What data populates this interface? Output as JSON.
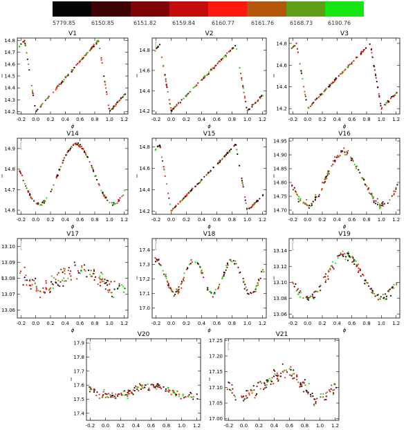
{
  "colorbar": {
    "colors": [
      "#050505",
      "#3e0204",
      "#800406",
      "#c40d0d",
      "#ff1a0d",
      "#b4560c",
      "#5f9e19",
      "#16e514"
    ],
    "epochs": [
      "5779.85",
      "6150.85",
      "6151.82",
      "6159.84",
      "6160.77",
      "6161.76",
      "6168.73",
      "6190.76"
    ]
  },
  "chart_data": [
    {
      "type": "scatter",
      "title": "V1",
      "xlabel": "ϕ",
      "ylabel": "I",
      "xlim": [
        -0.25,
        1.25
      ],
      "ylim": [
        14.82,
        14.18
      ],
      "xticks": [
        "-0.2",
        "0.0",
        "0.2",
        "0.4",
        "0.6",
        "0.8",
        "1.0",
        "1.2"
      ],
      "yticks": [
        "14.2",
        "14.3",
        "14.4",
        "14.5",
        "14.6",
        "14.7",
        "14.8"
      ],
      "curve": {
        "shape": "saw",
        "x": [
          0.0,
          0.85
        ],
        "y": [
          14.2,
          14.8
        ],
        "scatter": 0.012
      },
      "error_bar": false
    },
    {
      "type": "scatter",
      "title": "V2",
      "xlabel": "ϕ",
      "ylabel": "I",
      "xlim": [
        -0.25,
        1.25
      ],
      "ylim": [
        14.92,
        14.17
      ],
      "xticks": [
        "-0.2",
        "0.0",
        "0.2",
        "0.4",
        "0.6",
        "0.8",
        "1.0",
        "1.2"
      ],
      "yticks": [
        "14.2",
        "14.4",
        "14.6",
        "14.8"
      ],
      "curve": {
        "shape": "saw",
        "x": [
          0.0,
          0.85
        ],
        "y": [
          14.2,
          14.85
        ],
        "scatter": 0.015
      },
      "error_bar": true
    },
    {
      "type": "scatter",
      "title": "V3",
      "xlabel": "ϕ",
      "ylabel": "I",
      "xlim": [
        -0.25,
        1.25
      ],
      "ylim": [
        14.85,
        14.15
      ],
      "xticks": [
        "-0.2",
        "0.0",
        "0.2",
        "0.4",
        "0.6",
        "0.8",
        "1.0",
        "1.2"
      ],
      "yticks": [
        "14.2",
        "14.4",
        "14.6",
        "14.8"
      ],
      "curve": {
        "shape": "saw",
        "x": [
          0.0,
          0.85
        ],
        "y": [
          14.2,
          14.8
        ],
        "scatter": 0.012
      },
      "error_bar": false
    },
    {
      "type": "scatter",
      "title": "V14",
      "xlabel": "ϕ",
      "ylabel": "I",
      "xlim": [
        -0.25,
        1.25
      ],
      "ylim": [
        14.95,
        14.58
      ],
      "xticks": [
        "-0.2",
        "0.0",
        "0.2",
        "0.4",
        "0.6",
        "0.8",
        "1.0",
        "1.2"
      ],
      "yticks": [
        "14.6",
        "14.7",
        "14.8",
        "14.9"
      ],
      "curve": {
        "shape": "cos",
        "x": [
          0.05,
          0.55
        ],
        "y": [
          14.63,
          14.92
        ],
        "scatter": 0.01
      },
      "error_bar": true
    },
    {
      "type": "scatter",
      "title": "V15",
      "xlabel": "ϕ",
      "ylabel": "I",
      "xlim": [
        -0.25,
        1.25
      ],
      "ylim": [
        14.88,
        14.17
      ],
      "xticks": [
        "-0.2",
        "0.0",
        "0.2",
        "0.4",
        "0.6",
        "0.8",
        "1.0",
        "1.2"
      ],
      "yticks": [
        "14.2",
        "14.4",
        "14.6",
        "14.8"
      ],
      "curve": {
        "shape": "saw",
        "x": [
          0.0,
          0.85
        ],
        "y": [
          14.2,
          14.82
        ],
        "scatter": 0.012
      },
      "error_bar": false
    },
    {
      "type": "scatter",
      "title": "V16",
      "xlabel": "ϕ",
      "ylabel": "I",
      "xlim": [
        -0.25,
        1.25
      ],
      "ylim": [
        14.96,
        14.685
      ],
      "xticks": [
        "-0.2",
        "0.0",
        "0.2",
        "0.4",
        "0.6",
        "0.8",
        "1.0",
        "1.2"
      ],
      "yticks": [
        "14.70",
        "14.75",
        "14.80",
        "14.85",
        "14.90",
        "14.95"
      ],
      "curve": {
        "shape": "cos",
        "x": [
          0.0,
          0.45
        ],
        "y": [
          14.72,
          14.91
        ],
        "scatter": 0.02
      },
      "error_bar": false
    },
    {
      "type": "scatter",
      "title": "V17",
      "xlabel": "ϕ",
      "ylabel": "I",
      "xlim": [
        -0.25,
        1.25
      ],
      "ylim": [
        13.105,
        13.055
      ],
      "xticks": [
        "-0.2",
        "0.0",
        "0.2",
        "0.4",
        "0.6",
        "0.8",
        "1.0",
        "1.2"
      ],
      "yticks": [
        "13.06",
        "13.07",
        "13.08",
        "13.09",
        "13.10"
      ],
      "curve": {
        "shape": "cos",
        "x": [
          0.1,
          0.6
        ],
        "y": [
          13.074,
          13.086
        ],
        "scatter": 0.008
      },
      "error_bar": true
    },
    {
      "type": "scatter",
      "title": "V18",
      "xlabel": "ϕ",
      "ylabel": "I",
      "xlim": [
        -0.25,
        1.25
      ],
      "ylim": [
        17.48,
        16.93
      ],
      "xticks": [
        "-0.2",
        "0.0",
        "0.2",
        "0.4",
        "0.6",
        "0.8",
        "1.0",
        "1.2"
      ],
      "yticks": [
        "17.0",
        "17.1",
        "17.2",
        "17.3",
        "17.4"
      ],
      "curve": {
        "shape": "cos2",
        "x": [
          0.5,
          0.3
        ],
        "y": [
          17.1,
          17.33
        ],
        "scatter": 0.03
      },
      "error_bar": true
    },
    {
      "type": "scatter",
      "title": "V19",
      "xlabel": "ϕ",
      "ylabel": "I",
      "xlim": [
        -0.25,
        1.25
      ],
      "ylim": [
        13.155,
        13.055
      ],
      "xticks": [
        "-0.2",
        "0.0",
        "0.2",
        "0.4",
        "0.6",
        "0.8",
        "1.0",
        "1.2"
      ],
      "yticks": [
        "13.06",
        "13.08",
        "13.10",
        "13.12",
        "13.14"
      ],
      "curve": {
        "shape": "cos",
        "x": [
          0.0,
          0.65
        ],
        "y": [
          13.08,
          13.135
        ],
        "scatter": 0.008
      },
      "error_bar": true
    },
    {
      "type": "scatter",
      "title": "V20",
      "xlabel": "ϕ",
      "ylabel": "I",
      "xlim": [
        -0.25,
        1.25
      ],
      "ylim": [
        17.93,
        17.35
      ],
      "xticks": [
        "-0.2",
        "0.0",
        "0.2",
        "0.4",
        "0.6",
        "0.8",
        "1.0",
        "1.2"
      ],
      "yticks": [
        "17.4",
        "17.5",
        "17.6",
        "17.7",
        "17.8",
        "17.9"
      ],
      "curve": {
        "shape": "cos",
        "x": [
          0.1,
          0.6
        ],
        "y": [
          17.52,
          17.6
        ],
        "scatter": 0.04
      },
      "error_bar": true
    },
    {
      "type": "scatter",
      "title": "V21",
      "xlabel": "ϕ",
      "ylabel": "I",
      "xlim": [
        -0.25,
        1.25
      ],
      "ylim": [
        17.255,
        16.995
      ],
      "xticks": [
        "-0.2",
        "0.0",
        "0.2",
        "0.4",
        "0.6",
        "0.8",
        "1.0",
        "1.2"
      ],
      "yticks": [
        "17.00",
        "17.05",
        "17.10",
        "17.15",
        "17.20",
        "17.25"
      ],
      "curve": {
        "shape": "saw",
        "x": [
          0.95,
          0.6
        ],
        "y": [
          17.06,
          17.16
        ],
        "scatter": 0.03
      },
      "error_bar": true
    }
  ]
}
